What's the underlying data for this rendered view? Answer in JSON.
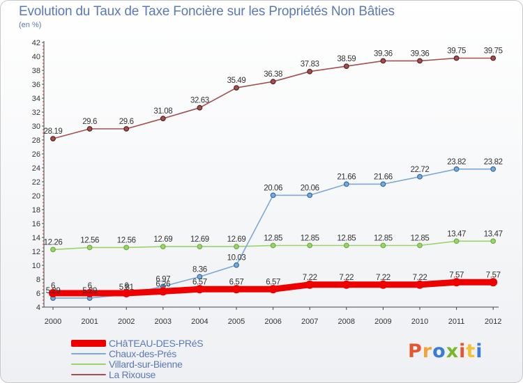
{
  "page": {
    "title": "Evolution du Taux de Taxe Foncière sur les Propriétés Non Bâties",
    "unit": "(en %)",
    "logo": "Proxiti",
    "logo_colors": [
      "#e4572e",
      "#f2a33a",
      "#3a7bd5",
      "#76b82a",
      "#e4572e",
      "#f2c230",
      "#3a7bd5"
    ]
  },
  "chart_data": {
    "type": "line",
    "title": "Evolution du Taux de Taxe Foncière sur les Propriétés Non Bâties",
    "ylabel": "(en %)",
    "xlabel": "",
    "x": [
      "2000",
      "2001",
      "2002",
      "2003",
      "2004",
      "2005",
      "2006",
      "2007",
      "2008",
      "2009",
      "2010",
      "2011",
      "2012"
    ],
    "ylim": [
      4,
      42
    ],
    "yticks": [
      4,
      6,
      8,
      10,
      12,
      14,
      16,
      18,
      20,
      22,
      24,
      26,
      28,
      30,
      32,
      34,
      36,
      38,
      40,
      42
    ],
    "grid": false,
    "legend_position": "bottom-left",
    "series": [
      {
        "name": "CHâTEAU-DES-PRéS",
        "color": "#ee0000",
        "values": [
          6,
          6,
          6,
          6.26,
          6.57,
          6.57,
          6.57,
          7.22,
          7.22,
          7.22,
          7.22,
          7.57,
          7.57
        ],
        "labels": [
          "6",
          "6",
          "6",
          "6.26",
          "6.57",
          "6.57",
          "6.57",
          "7.22",
          "7.22",
          "7.22",
          "7.22",
          "7.57",
          "7.57"
        ]
      },
      {
        "name": "Chaux-des-Prés",
        "color": "#7aa9d6",
        "values": [
          5.29,
          5.29,
          5.81,
          6.97,
          8.36,
          10.03,
          20.06,
          20.06,
          21.66,
          21.66,
          22.72,
          23.82,
          23.82
        ],
        "labels": [
          "5.29",
          "5.29",
          "5.81",
          "6.97",
          "8.36",
          "10.03",
          "20.06",
          "20.06",
          "21.66",
          "21.66",
          "22.72",
          "23.82",
          "23.82"
        ]
      },
      {
        "name": "Villard-sur-Bienne",
        "color": "#99d36b",
        "values": [
          12.26,
          12.56,
          12.56,
          12.69,
          12.69,
          12.69,
          12.85,
          12.85,
          12.85,
          12.85,
          12.85,
          13.47,
          13.47
        ],
        "labels": [
          "12.26",
          "12.56",
          "12.56",
          "12.69",
          "12.69",
          "12.69",
          "12.85",
          "12.85",
          "12.85",
          "12.85",
          "12.85",
          "13.47",
          "13.47"
        ]
      },
      {
        "name": "La Rixouse",
        "color": "#a24f4f",
        "values": [
          28.19,
          29.6,
          29.6,
          31.08,
          32.63,
          35.49,
          36.38,
          37.83,
          38.59,
          39.36,
          39.36,
          39.75,
          39.75
        ],
        "labels": [
          "28.19",
          "29.6",
          "29.6",
          "31.08",
          "32.63",
          "35.49",
          "36.38",
          "37.83",
          "38.59",
          "39.36",
          "39.36",
          "39.75",
          "39.75"
        ]
      }
    ]
  }
}
